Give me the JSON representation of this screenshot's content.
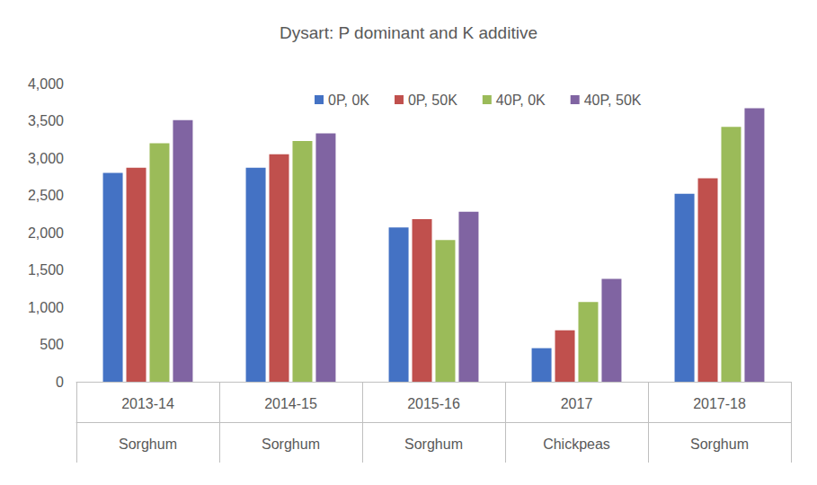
{
  "chart_data": {
    "type": "bar",
    "title": "Dysart: P dominant and K additive",
    "categories": [
      "2013-14",
      "2014-15",
      "2015-16",
      "2017",
      "2017-18"
    ],
    "category_groups": [
      "Sorghum",
      "Sorghum",
      "Sorghum",
      "Chickpeas",
      "Sorghum"
    ],
    "series": [
      {
        "name": "0P, 0K",
        "color": "#4472c4",
        "values": [
          2800,
          2870,
          2070,
          450,
          2520
        ]
      },
      {
        "name": "0P, 50K",
        "color": "#c0504d",
        "values": [
          2870,
          3050,
          2180,
          690,
          2730
        ]
      },
      {
        "name": "40P, 0K",
        "color": "#9bbb59",
        "values": [
          3200,
          3230,
          1900,
          1070,
          3420
        ]
      },
      {
        "name": "40P, 50K",
        "color": "#8064a2",
        "values": [
          3510,
          3330,
          2280,
          1380,
          3670
        ]
      }
    ],
    "ylim": [
      0,
      4000
    ],
    "yticks": [
      0,
      500,
      1000,
      1500,
      2000,
      2500,
      3000,
      3500,
      4000
    ],
    "grid": false,
    "legend": "top"
  }
}
